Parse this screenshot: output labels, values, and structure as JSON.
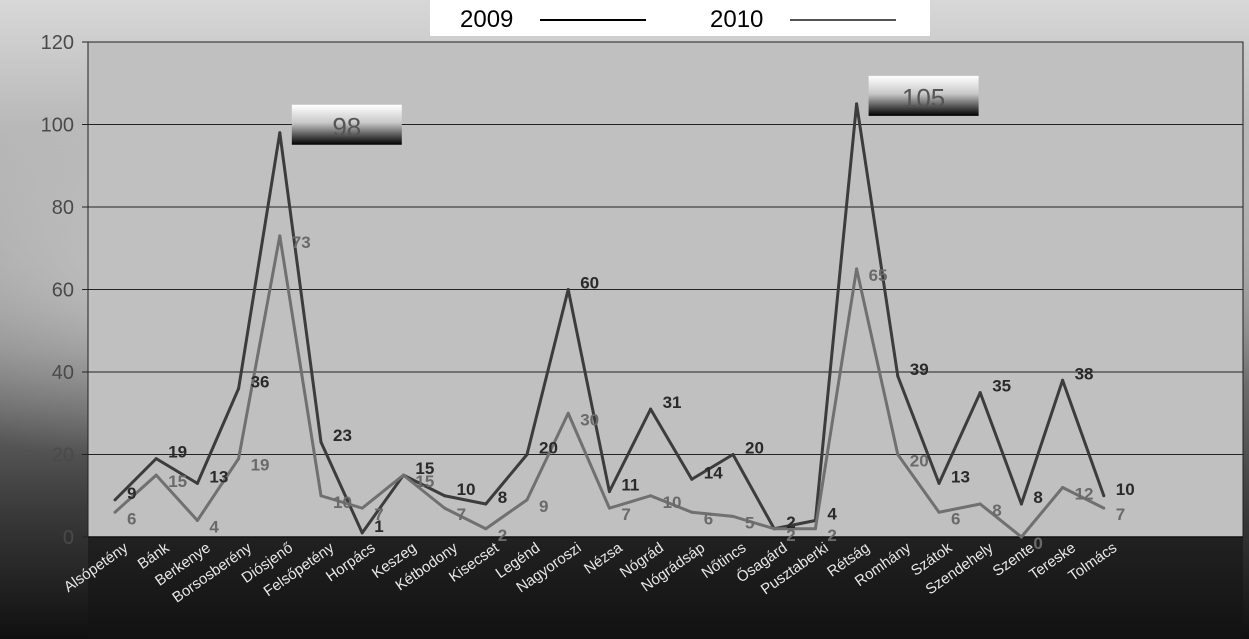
{
  "chart_data": {
    "type": "line",
    "categories": [
      "Alsópetény",
      "Bánk",
      "Berkenye",
      "Borsosberény",
      "Diósjenő",
      "Felsőpetény",
      "Horpács",
      "Keszeg",
      "Kétbodony",
      "Kisecset",
      "Legénd",
      "Nagyoroszi",
      "Nézsa",
      "Nógrád",
      "Nógrádsáp",
      "Nőtincs",
      "Ősagárd",
      "Pusztaberki",
      "Rétság",
      "Romhány",
      "Szátok",
      "Szendehely",
      "Szente",
      "Tereske",
      "Tolmács"
    ],
    "series": [
      {
        "name": "2009",
        "color": "#3c3c3c",
        "label_color": "#2a2a2a",
        "values": [
          9,
          19,
          13,
          36,
          98,
          23,
          1,
          15,
          10,
          8,
          20,
          60,
          11,
          31,
          14,
          20,
          2,
          4,
          105,
          39,
          13,
          35,
          8,
          38,
          10
        ]
      },
      {
        "name": "2010",
        "color": "#707070",
        "label_color": "#6a6a6a",
        "values": [
          6,
          15,
          4,
          19,
          73,
          10,
          7,
          15,
          7,
          2,
          9,
          30,
          7,
          10,
          6,
          5,
          2,
          2,
          65,
          20,
          6,
          8,
          0,
          12,
          7
        ]
      }
    ],
    "y_ticks": [
      "0",
      "20",
      "40",
      "60",
      "80",
      "100",
      "120"
    ],
    "ylim": [
      0,
      120
    ],
    "grid": true,
    "legend": "top-center",
    "callouts": [
      {
        "category_index": 4,
        "series_index": 0,
        "text": "98"
      },
      {
        "category_index": 18,
        "series_index": 0,
        "text": "105"
      }
    ]
  }
}
